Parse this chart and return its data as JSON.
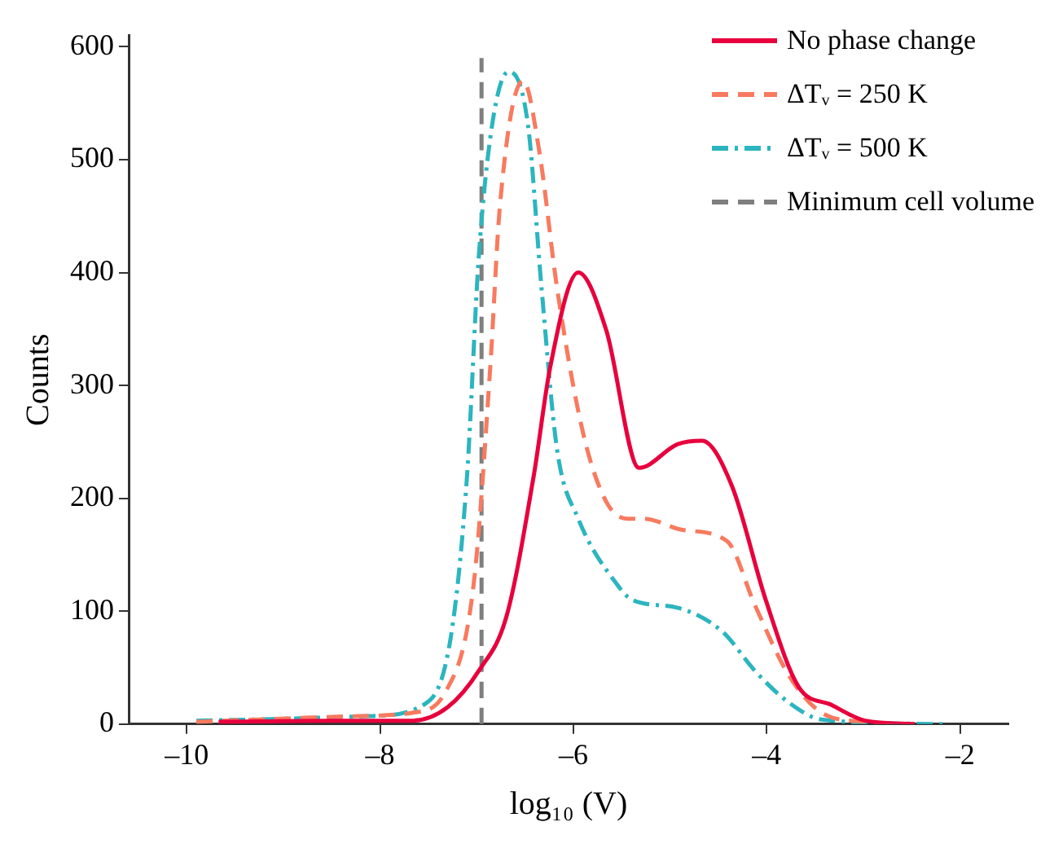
{
  "chart_data": {
    "type": "line",
    "xlabel": "log₁₀ (V)",
    "ylabel": "Counts",
    "xlim": [
      -10.6,
      -1.5
    ],
    "xticks": [
      {
        "value": -10,
        "label": "–10"
      },
      {
        "value": -8,
        "label": "–8"
      },
      {
        "value": -6,
        "label": "–6"
      },
      {
        "value": -4,
        "label": "–4"
      },
      {
        "value": -2,
        "label": "–2"
      }
    ],
    "ylim": [
      0,
      610
    ],
    "yticks": [
      0,
      100,
      200,
      300,
      400,
      500,
      600
    ],
    "grid": false,
    "legend": "top right",
    "marker": "none",
    "series": [
      {
        "name": "No phase change",
        "color": "#e8003d",
        "line_style": "solid",
        "x": [
          -9.67,
          -8.5,
          -7.67,
          -7.3,
          -6.98,
          -6.69,
          -6.41,
          -6.24,
          -5.95,
          -5.66,
          -5.32,
          -4.92,
          -4.67,
          -4.36,
          -4.01,
          -3.67,
          -3.33,
          -2.98,
          -2.47
        ],
        "values": [
          2,
          3,
          3,
          15,
          47,
          96,
          220,
          316,
          400,
          349,
          227,
          248,
          251,
          211,
          110,
          33,
          17,
          3,
          0
        ]
      },
      {
        "name": "ΔTᵥ = 250 K",
        "color": "#f87a5f",
        "line_style": "dashed",
        "x": [
          -9.9,
          -8.23,
          -7.67,
          -7.32,
          -7.03,
          -6.86,
          -6.76,
          -6.52,
          -6.35,
          -6.17,
          -5.9,
          -5.66,
          -5.44,
          -5.27,
          -4.87,
          -4.41,
          -4.12,
          -3.77,
          -3.43,
          -2.98,
          -2.47
        ],
        "values": [
          2,
          7,
          10,
          29,
          125,
          316,
          459,
          570,
          506,
          387,
          258,
          197,
          182,
          182,
          172,
          162,
          105,
          43,
          10,
          2,
          0
        ]
      },
      {
        "name": "ΔTᵥ = 500 K",
        "color": "#2bb5bf",
        "line_style": "dashdot",
        "x": [
          -9.9,
          -8.13,
          -7.55,
          -7.27,
          -7.1,
          -6.98,
          -6.84,
          -6.67,
          -6.47,
          -6.33,
          -6.17,
          -5.95,
          -5.56,
          -5.39,
          -4.92,
          -4.46,
          -4.12,
          -3.77,
          -3.43,
          -2.18
        ],
        "values": [
          3,
          7,
          17,
          76,
          220,
          412,
          531,
          578,
          531,
          387,
          244,
          182,
          125,
          110,
          103,
          82,
          47,
          19,
          4,
          0
        ]
      },
      {
        "name": "Minimum cell volume",
        "color": "#7f7f7f",
        "line_style": "dashed",
        "x": [
          -6.95,
          -6.95
        ],
        "values": [
          0,
          590
        ]
      }
    ]
  }
}
